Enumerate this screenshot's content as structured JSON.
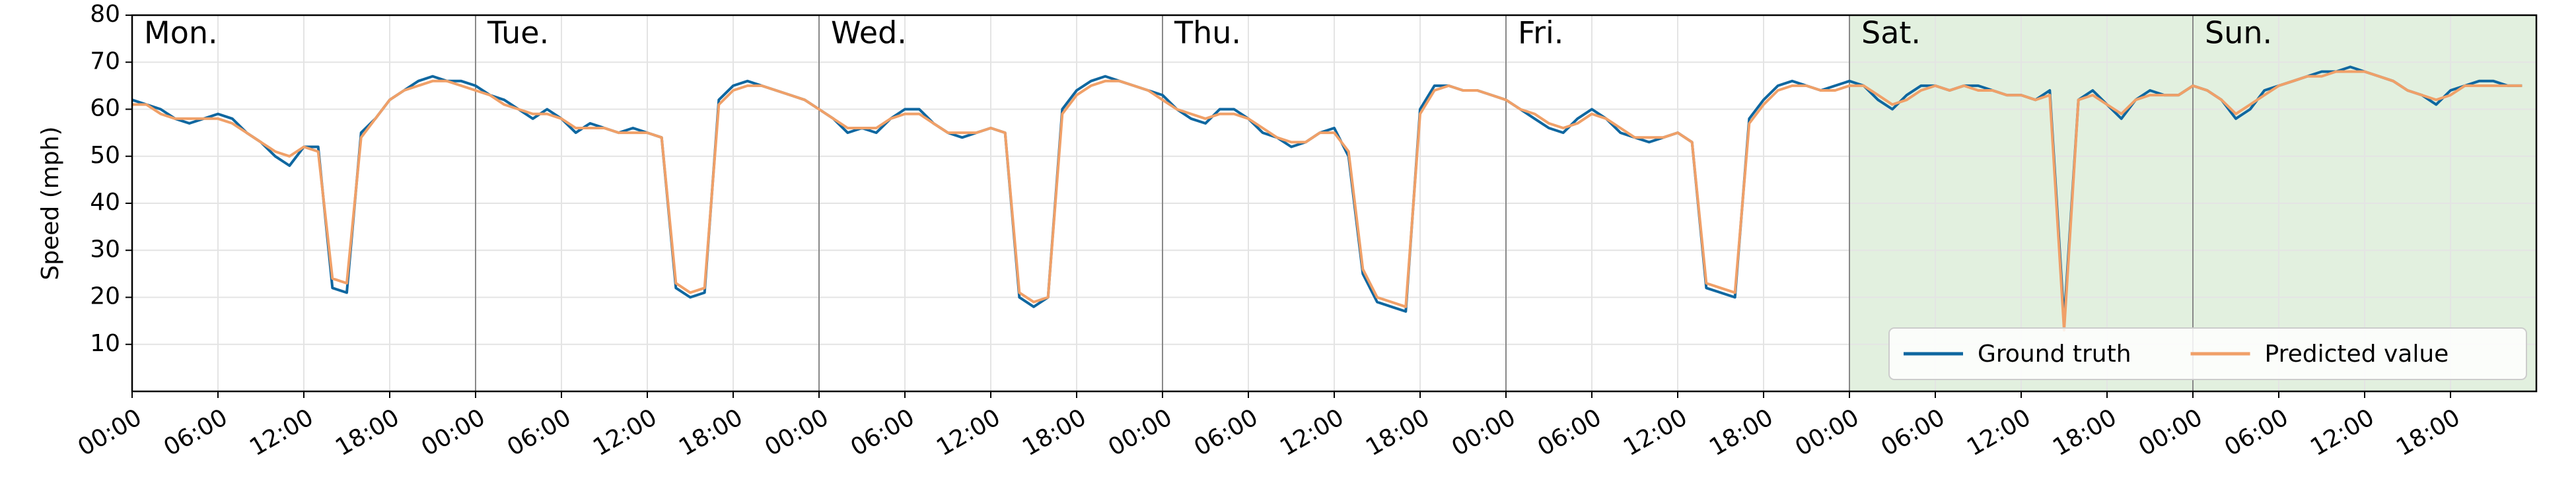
{
  "chart_data": {
    "type": "line",
    "ylabel": "Speed (mph)",
    "days": [
      "Mon.",
      "Tue.",
      "Wed.",
      "Thu.",
      "Fri.",
      "Sat.",
      "Sun."
    ],
    "shaded_xrange": [
      120,
      168
    ],
    "x": [
      0,
      1,
      2,
      3,
      4,
      5,
      6,
      7,
      8,
      9,
      10,
      11,
      12,
      13,
      14,
      15,
      16,
      17,
      18,
      19,
      20,
      21,
      22,
      23,
      24,
      25,
      26,
      27,
      28,
      29,
      30,
      31,
      32,
      33,
      34,
      35,
      36,
      37,
      38,
      39,
      40,
      41,
      42,
      43,
      44,
      45,
      46,
      47,
      48,
      49,
      50,
      51,
      52,
      53,
      54,
      55,
      56,
      57,
      58,
      59,
      60,
      61,
      62,
      63,
      64,
      65,
      66,
      67,
      68,
      69,
      70,
      71,
      72,
      73,
      74,
      75,
      76,
      77,
      78,
      79,
      80,
      81,
      82,
      83,
      84,
      85,
      86,
      87,
      88,
      89,
      90,
      91,
      92,
      93,
      94,
      95,
      96,
      97,
      98,
      99,
      100,
      101,
      102,
      103,
      104,
      105,
      106,
      107,
      108,
      109,
      110,
      111,
      112,
      113,
      114,
      115,
      116,
      117,
      118,
      119,
      120,
      121,
      122,
      123,
      124,
      125,
      126,
      127,
      128,
      129,
      130,
      131,
      132,
      133,
      134,
      135,
      136,
      137,
      138,
      139,
      140,
      141,
      142,
      143,
      144,
      145,
      146,
      147,
      148,
      149,
      150,
      151,
      152,
      153,
      154,
      155,
      156,
      157,
      158,
      159,
      160,
      161,
      162,
      163,
      164,
      165,
      166,
      167
    ],
    "series": [
      {
        "name": "Ground truth",
        "color": "#0f67a0",
        "values": [
          62,
          61,
          60,
          58,
          57,
          58,
          59,
          58,
          55,
          53,
          50,
          48,
          52,
          52,
          22,
          21,
          55,
          58,
          62,
          64,
          66,
          67,
          66,
          66,
          65,
          63,
          62,
          60,
          58,
          60,
          58,
          55,
          57,
          56,
          55,
          56,
          55,
          54,
          22,
          20,
          21,
          62,
          65,
          66,
          65,
          64,
          63,
          62,
          60,
          58,
          55,
          56,
          55,
          58,
          60,
          60,
          57,
          55,
          54,
          55,
          56,
          55,
          20,
          18,
          20,
          60,
          64,
          66,
          67,
          66,
          65,
          64,
          63,
          60,
          58,
          57,
          60,
          60,
          58,
          55,
          54,
          52,
          53,
          55,
          56,
          50,
          25,
          19,
          18,
          17,
          60,
          65,
          65,
          64,
          64,
          63,
          62,
          60,
          58,
          56,
          55,
          58,
          60,
          58,
          55,
          54,
          53,
          54,
          55,
          53,
          22,
          21,
          20,
          58,
          62,
          65,
          66,
          65,
          64,
          65,
          66,
          65,
          62,
          60,
          63,
          65,
          65,
          64,
          65,
          65,
          64,
          63,
          63,
          62,
          64,
          15,
          62,
          64,
          61,
          58,
          62,
          64,
          63,
          63,
          65,
          64,
          62,
          58,
          60,
          64,
          65,
          66,
          67,
          68,
          68,
          69,
          68,
          67,
          66,
          64,
          63,
          61,
          64,
          65,
          66,
          66,
          65,
          65
        ]
      },
      {
        "name": "Predicted value",
        "color": "#f0a068",
        "values": [
          61,
          61,
          59,
          58,
          58,
          58,
          58,
          57,
          55,
          53,
          51,
          50,
          52,
          51,
          24,
          23,
          54,
          58,
          62,
          64,
          65,
          66,
          66,
          65,
          64,
          63,
          61,
          60,
          59,
          59,
          58,
          56,
          56,
          56,
          55,
          55,
          55,
          54,
          23,
          21,
          22,
          61,
          64,
          65,
          65,
          64,
          63,
          62,
          60,
          58,
          56,
          56,
          56,
          58,
          59,
          59,
          57,
          55,
          55,
          55,
          56,
          55,
          21,
          19,
          20,
          59,
          63,
          65,
          66,
          66,
          65,
          64,
          62,
          60,
          59,
          58,
          59,
          59,
          58,
          56,
          54,
          53,
          53,
          55,
          55,
          51,
          26,
          20,
          19,
          18,
          59,
          64,
          65,
          64,
          64,
          63,
          62,
          60,
          59,
          57,
          56,
          57,
          59,
          58,
          56,
          54,
          54,
          54,
          55,
          53,
          23,
          22,
          21,
          57,
          61,
          64,
          65,
          65,
          64,
          64,
          65,
          65,
          63,
          61,
          62,
          64,
          65,
          64,
          65,
          64,
          64,
          63,
          63,
          62,
          63,
          13,
          62,
          63,
          61,
          59,
          62,
          63,
          63,
          63,
          65,
          64,
          62,
          59,
          61,
          63,
          65,
          66,
          67,
          67,
          68,
          68,
          68,
          67,
          66,
          64,
          63,
          62,
          63,
          65,
          65,
          65,
          65,
          65
        ]
      }
    ],
    "xlim": [
      0,
      168
    ],
    "xticks": [
      {
        "value": 0,
        "label": "00:00"
      },
      {
        "value": 6,
        "label": "06:00"
      },
      {
        "value": 12,
        "label": "12:00"
      },
      {
        "value": 18,
        "label": "18:00"
      },
      {
        "value": 24,
        "label": "00:00"
      },
      {
        "value": 30,
        "label": "06:00"
      },
      {
        "value": 36,
        "label": "12:00"
      },
      {
        "value": 42,
        "label": "18:00"
      },
      {
        "value": 48,
        "label": "00:00"
      },
      {
        "value": 54,
        "label": "06:00"
      },
      {
        "value": 60,
        "label": "12:00"
      },
      {
        "value": 66,
        "label": "18:00"
      },
      {
        "value": 72,
        "label": "00:00"
      },
      {
        "value": 78,
        "label": "06:00"
      },
      {
        "value": 84,
        "label": "12:00"
      },
      {
        "value": 90,
        "label": "18:00"
      },
      {
        "value": 96,
        "label": "00:00"
      },
      {
        "value": 102,
        "label": "06:00"
      },
      {
        "value": 108,
        "label": "12:00"
      },
      {
        "value": 114,
        "label": "18:00"
      },
      {
        "value": 120,
        "label": "00:00"
      },
      {
        "value": 126,
        "label": "06:00"
      },
      {
        "value": 132,
        "label": "12:00"
      },
      {
        "value": 138,
        "label": "18:00"
      },
      {
        "value": 144,
        "label": "00:00"
      },
      {
        "value": 150,
        "label": "06:00"
      },
      {
        "value": 156,
        "label": "12:00"
      },
      {
        "value": 162,
        "label": "18:00"
      }
    ],
    "ylim": [
      0,
      80
    ],
    "yticks": [
      10,
      20,
      30,
      40,
      50,
      60,
      70,
      80
    ],
    "grid": true,
    "legend": "lower right"
  }
}
